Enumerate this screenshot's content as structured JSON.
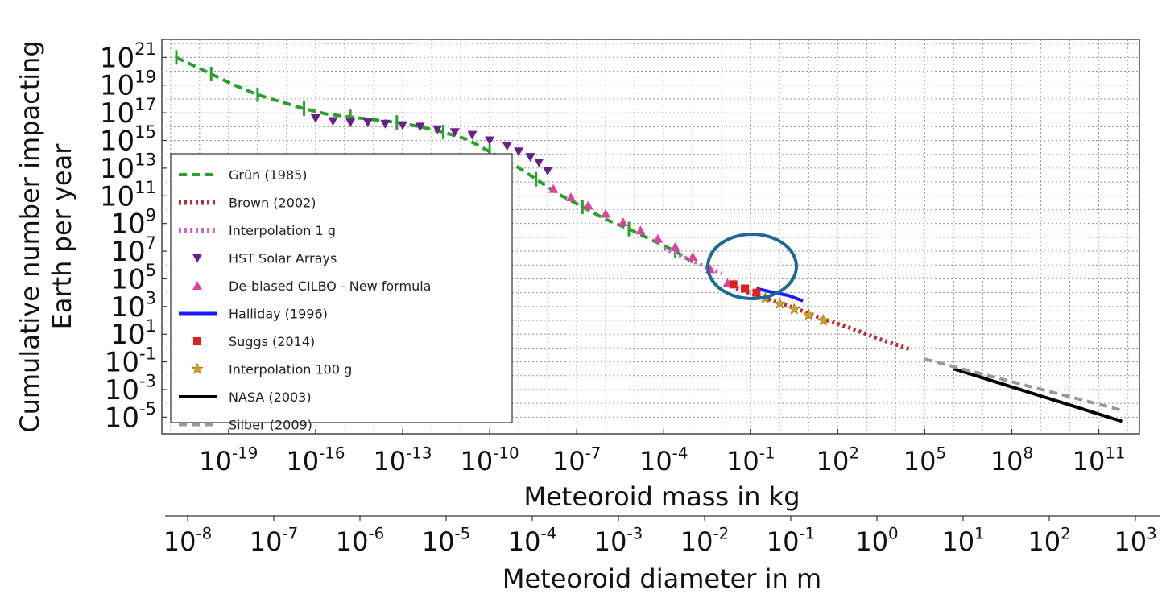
{
  "chart_data": {
    "type": "scatter",
    "xlabel": "Meteoroid mass in kg",
    "x2label": "Meteoroid diameter in m",
    "ylabel": [
      "Cumulative number impacting",
      "Earth per year"
    ],
    "x_scale": "log",
    "y_scale": "log",
    "xlim_log10": [
      -21.3,
      12.4
    ],
    "ylim_log10": [
      -6.2,
      22.3
    ],
    "x_ticks_log10": [
      -19,
      -16,
      -13,
      -10,
      -7,
      -4,
      -1,
      2,
      5,
      8,
      11
    ],
    "y_ticks_log10": [
      21,
      19,
      17,
      15,
      13,
      11,
      9,
      7,
      5,
      3,
      1,
      -1,
      -3,
      -5
    ],
    "x2_ticks_log10": [
      -8,
      -7,
      -6,
      -5,
      -4,
      -3,
      -2,
      -1,
      0,
      1,
      2,
      3
    ],
    "grid": true,
    "legend_position": "center-left",
    "annotation": "blue ellipse highlighting mass range ~1e-3 to 1 kg",
    "series": [
      {
        "name": "Grün (1985)",
        "style": "dashed",
        "color": "#2ca02c",
        "x_log10": [
          -20.8,
          -20.3,
          -19.6,
          -18.8,
          -18,
          -17.2,
          -16.4,
          -15.6,
          -14.8,
          -14,
          -13.2,
          -12.4,
          -11.6,
          -10.8,
          -10,
          -9.2,
          -8.4,
          -7.6,
          -6.8,
          -6,
          -5.2,
          -4.4,
          -3.6,
          -3
        ],
        "y_log10": [
          21.0,
          20.5,
          19.8,
          19.0,
          18.3,
          17.8,
          17.3,
          16.9,
          16.7,
          16.5,
          16.3,
          16.0,
          15.6,
          15.1,
          14.2,
          13.3,
          12.2,
          11.1,
          10.2,
          9.3,
          8.6,
          7.8,
          7.0,
          6.2
        ]
      },
      {
        "name": "Brown (2002)",
        "style": "dotted",
        "color": "#c0282d",
        "x_log10": [
          -1.5,
          -0.5,
          0.5,
          1.5,
          2.5,
          3.5,
          4.5
        ],
        "y_log10": [
          4.3,
          3.6,
          2.9,
          2.1,
          1.4,
          0.6,
          -0.1
        ]
      },
      {
        "name": "Interpolation 1 g",
        "style": "dotted",
        "color": "#cc66cc",
        "x_log10": [
          -4,
          -3,
          -2.5,
          -2
        ],
        "y_log10": [
          7.2,
          6.3,
          5.8,
          5.4
        ]
      },
      {
        "name": "HST Solar Arrays",
        "style": "marker",
        "marker": "triangle-down",
        "color": "#6a1f8a",
        "x_log10": [
          -16.0,
          -15.4,
          -14.8,
          -14.2,
          -13.6,
          -13.0,
          -12.4,
          -11.8,
          -11.2,
          -10.6,
          -10.0,
          -9.4,
          -9.0,
          -8.6,
          -8.3,
          -8.0
        ],
        "y_log10": [
          16.6,
          16.4,
          16.3,
          16.3,
          16.2,
          16.1,
          16.0,
          15.8,
          15.6,
          15.4,
          15.0,
          14.6,
          14.2,
          13.8,
          13.4,
          12.8
        ]
      },
      {
        "name": "De-biased CILBO - New formula",
        "style": "marker",
        "marker": "triangle-up",
        "color": "#e040a0",
        "x_log10": [
          -7.8,
          -7.2,
          -6.6,
          -6.0,
          -5.4,
          -4.8,
          -4.2,
          -3.6,
          -3.0,
          -2.4,
          -1.8
        ],
        "y_log10": [
          11.5,
          10.9,
          10.3,
          9.7,
          9.1,
          8.5,
          7.9,
          7.3,
          6.6,
          5.7,
          4.7
        ]
      },
      {
        "name": "Halliday (1996)",
        "style": "solid",
        "color": "#1a1aff",
        "x_log10": [
          -0.8,
          -0.2,
          0.3,
          0.8
        ],
        "y_log10": [
          4.3,
          4.0,
          3.8,
          3.4
        ]
      },
      {
        "name": "Suggs (2014)",
        "style": "marker",
        "marker": "square",
        "color": "#e02020",
        "x_log10": [
          -1.6,
          -1.2,
          -0.8
        ],
        "y_log10": [
          4.6,
          4.3,
          4.0
        ]
      },
      {
        "name": "Interpolation 100 g",
        "style": "marker",
        "marker": "star",
        "color": "#d4a020",
        "x_log10": [
          -0.5,
          0,
          0.5,
          1.0,
          1.5
        ],
        "y_log10": [
          3.6,
          3.2,
          2.8,
          2.4,
          2.0
        ]
      },
      {
        "name": "NASA (2003)",
        "style": "solid",
        "color": "#000000",
        "x_log10": [
          6.0,
          11.8
        ],
        "y_log10": [
          -1.5,
          -5.3
        ]
      },
      {
        "name": "Silber (2009)",
        "style": "dashed",
        "color": "#999999",
        "x_log10": [
          5.0,
          11.8
        ],
        "y_log10": [
          -0.8,
          -4.5
        ]
      }
    ]
  }
}
